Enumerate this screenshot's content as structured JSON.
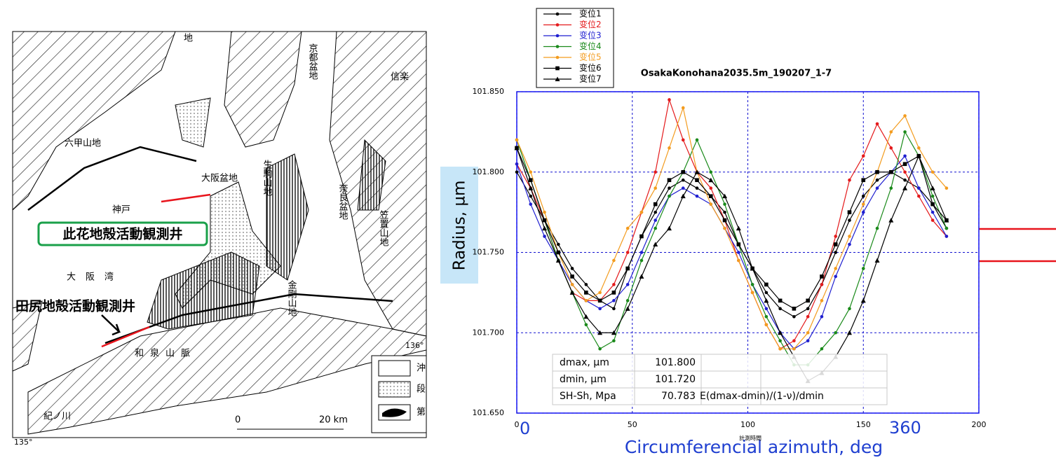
{
  "map": {
    "labels": [
      "地",
      "京都盆地",
      "信楽",
      "六甲山地",
      "大阪盆地",
      "神戸",
      "生駒山地",
      "奈良盆地",
      "笠置山地",
      "大阪湾",
      "金剛山地",
      "和泉山脈",
      "紀ノ川"
    ],
    "wells": [
      "此花地殻活動観測井",
      "田尻地殻活動観測井"
    ],
    "scale": [
      "0",
      "20 km"
    ],
    "coords": [
      "135°",
      "136°"
    ],
    "legend": [
      "沖",
      "段",
      "第"
    ]
  },
  "chart_data": {
    "type": "line",
    "title": "OsakaKonohana2035.5m_190207_1-7",
    "x_label": "Circumferencial azimuth, deg",
    "y_label": "Radius, µm",
    "annotations": [
      "0",
      "360",
      "計測時間"
    ],
    "xlim": [
      0,
      200
    ],
    "xticks": [
      0,
      50,
      100,
      150,
      200
    ],
    "ylim": [
      101.65,
      101.85
    ],
    "yticks": [
      {
        "value": 101.65,
        "label": "101.650"
      },
      {
        "value": 101.7,
        "label": "101.700"
      },
      {
        "value": 101.75,
        "label": "101.750"
      },
      {
        "value": 101.8,
        "label": "101.800"
      },
      {
        "value": 101.85,
        "label": "101.850"
      }
    ],
    "grid": true,
    "x": [
      0,
      6,
      12,
      18,
      24,
      30,
      36,
      42,
      48,
      54,
      60,
      66,
      72,
      78,
      84,
      90,
      96,
      102,
      108,
      114,
      120,
      126,
      132,
      138,
      144,
      150,
      156,
      162,
      168,
      174,
      180,
      186
    ],
    "series": [
      {
        "name": "变位1",
        "color": "#000000",
        "marker": "circle",
        "values": [
          101.8,
          101.785,
          101.77,
          101.755,
          101.74,
          101.73,
          101.72,
          101.715,
          101.74,
          101.76,
          101.775,
          101.79,
          101.795,
          101.79,
          101.785,
          101.775,
          101.755,
          101.74,
          101.725,
          101.715,
          101.71,
          101.715,
          101.73,
          101.75,
          101.77,
          101.785,
          101.795,
          101.8,
          101.795,
          101.79,
          101.78,
          101.765
        ]
      },
      {
        "name": "变位2",
        "color": "#e41a1c",
        "marker": "circle",
        "values": [
          101.805,
          101.79,
          101.77,
          101.745,
          101.725,
          101.72,
          101.72,
          101.73,
          101.75,
          101.775,
          101.8,
          101.845,
          101.82,
          101.8,
          101.79,
          101.77,
          101.745,
          101.725,
          101.705,
          101.69,
          101.695,
          101.71,
          101.73,
          101.76,
          101.795,
          101.81,
          101.83,
          101.815,
          101.8,
          101.785,
          101.77,
          101.76
        ]
      },
      {
        "name": "变位3",
        "color": "#1f1fd0",
        "marker": "circle",
        "values": [
          101.805,
          101.78,
          101.76,
          101.745,
          101.73,
          101.72,
          101.715,
          101.72,
          101.73,
          101.75,
          101.77,
          101.785,
          101.79,
          101.785,
          101.78,
          101.765,
          101.75,
          101.73,
          101.715,
          101.7,
          101.69,
          101.695,
          101.71,
          101.735,
          101.755,
          101.775,
          101.79,
          101.8,
          101.81,
          101.79,
          101.775,
          101.76
        ]
      },
      {
        "name": "变位4",
        "color": "#1a8a1a",
        "marker": "circle",
        "values": [
          101.82,
          101.795,
          101.77,
          101.745,
          101.725,
          101.705,
          101.69,
          101.695,
          101.72,
          101.745,
          101.765,
          101.785,
          101.8,
          101.82,
          101.8,
          101.78,
          101.755,
          101.73,
          101.71,
          101.695,
          101.68,
          101.68,
          101.69,
          101.7,
          101.715,
          101.74,
          101.765,
          101.79,
          101.825,
          101.81,
          101.785,
          101.765
        ]
      },
      {
        "name": "变位5",
        "color": "#f39c1f",
        "marker": "circle",
        "values": [
          101.82,
          101.8,
          101.775,
          101.75,
          101.73,
          101.72,
          101.725,
          101.745,
          101.765,
          101.775,
          101.79,
          101.815,
          101.84,
          101.8,
          101.78,
          101.765,
          101.745,
          101.725,
          101.705,
          101.69,
          101.69,
          101.7,
          101.72,
          101.74,
          101.76,
          101.78,
          101.8,
          101.825,
          101.835,
          101.815,
          101.8,
          101.79
        ]
      },
      {
        "name": "变位6",
        "color": "#000000",
        "marker": "square",
        "values": [
          101.815,
          101.795,
          101.77,
          101.75,
          101.735,
          101.725,
          101.72,
          101.725,
          101.74,
          101.76,
          101.78,
          101.795,
          101.8,
          101.795,
          101.785,
          101.77,
          101.755,
          101.74,
          101.73,
          101.72,
          101.715,
          101.72,
          101.735,
          101.755,
          101.775,
          101.795,
          101.8,
          101.8,
          101.805,
          101.81,
          101.78,
          101.77
        ]
      },
      {
        "name": "变位7",
        "color": "#000000",
        "marker": "triangle",
        "values": [
          101.815,
          101.79,
          101.765,
          101.745,
          101.725,
          101.71,
          101.7,
          101.7,
          101.715,
          101.735,
          101.755,
          101.765,
          101.785,
          101.8,
          101.795,
          101.785,
          101.765,
          101.74,
          101.72,
          101.7,
          101.685,
          101.67,
          101.675,
          101.685,
          101.7,
          101.72,
          101.745,
          101.77,
          101.79,
          101.81,
          101.79,
          101.77
        ]
      }
    ],
    "table": [
      [
        "dmax, µm",
        "101.800"
      ],
      [
        "dmin, µm",
        "101.720"
      ],
      [
        "SH-Sh, Mpa",
        "70.783",
        "E(dmax-dmin)/(1-ν)/dmin"
      ]
    ]
  }
}
